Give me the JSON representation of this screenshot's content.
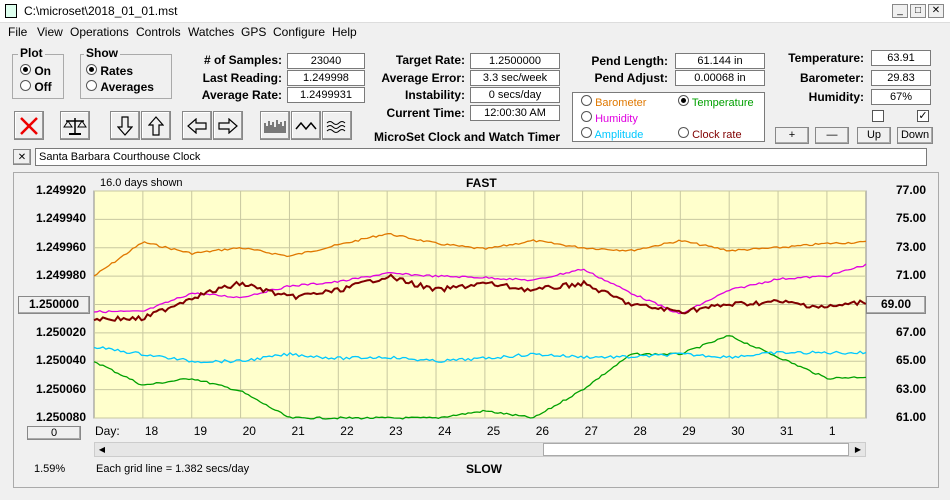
{
  "window": {
    "title": "C:\\microset\\2018_01_01.mst"
  },
  "menu": [
    "File",
    "View",
    "Operations",
    "Controls",
    "Watches",
    "GPS",
    "Configure",
    "Help"
  ],
  "plot_group": {
    "label": "Plot",
    "on": "On",
    "off": "Off",
    "selected": "On"
  },
  "show_group": {
    "label": "Show",
    "rates": "Rates",
    "averages": "Averages",
    "selected": "Rates"
  },
  "stats": {
    "samples_label": "# of Samples:",
    "samples": "23040",
    "last_label": "Last Reading:",
    "last": "1.249998",
    "avg_label": "Average Rate:",
    "avg": "1.2499931",
    "target_label": "Target Rate:",
    "target": "1.2500000",
    "avgerr_label": "Average Error:",
    "avgerr": "3.3 sec/week",
    "instab_label": "Instability:",
    "instab": "0 secs/day",
    "time_label": "Current Time:",
    "time": "12:00:30 AM",
    "pendlen_label": "Pend Length:",
    "pendlen": "61.144 in",
    "pendadj_label": "Pend Adjust:",
    "pendadj": "0.00068 in",
    "temp_label": "Temperature:",
    "temp": "63.91",
    "baro_label": "Barometer:",
    "baro": "29.83",
    "hum_label": "Humidity:",
    "hum": "67%"
  },
  "app_caption": "MicroSet Clock and Watch Timer",
  "sensor_select": {
    "barometer": "Barometer",
    "temperature": "Temperature",
    "humidity": "Humidity",
    "amplitude": "Amplitude",
    "clockrate": "Clock rate",
    "selected": "Temperature",
    "colors": {
      "barometer": "#e07800",
      "temperature": "#00a000",
      "humidity": "#e000e0",
      "amplitude": "#00c8ff",
      "clockrate": "#800000"
    }
  },
  "right_buttons": {
    "plus": "+",
    "minus": "—",
    "up": "Up",
    "down": "Down"
  },
  "clock_name": "Santa Barbara Courthouse Clock",
  "close_x": "✕",
  "chart": {
    "days_shown": "16.0 days shown",
    "fast": "FAST",
    "slow": "SLOW",
    "left_ticks": [
      "1.249920",
      "1.249940",
      "1.249960",
      "1.249980",
      "1.250000",
      "1.250020",
      "1.250040",
      "1.250060",
      "1.250080"
    ],
    "right_ticks": [
      "77.00",
      "75.00",
      "73.00",
      "71.00",
      "69.00",
      "67.00",
      "65.00",
      "63.00",
      "61.00"
    ],
    "day_label": "Day:",
    "days": [
      "18",
      "19",
      "20",
      "21",
      "22",
      "23",
      "24",
      "25",
      "26",
      "27",
      "28",
      "29",
      "30",
      "31",
      "1"
    ],
    "bottom_left_button": "0",
    "percent": "1.59%",
    "grid_note": "Each grid line = 1.382 secs/day",
    "bg": "#ffffcc"
  },
  "chart_data": {
    "type": "line",
    "title": "",
    "xlabel": "Day",
    "x": [
      17.0,
      18.0,
      19.0,
      20.0,
      21.0,
      22.0,
      23.0,
      24.0,
      25.0,
      26.0,
      27.0,
      28.0,
      29.0,
      30.0,
      31.0,
      32.0,
      32.8
    ],
    "y_left_range": [
      1.24992,
      1.25008
    ],
    "y_right_range": [
      61,
      77
    ],
    "series": [
      {
        "name": "Barometer",
        "axis": "right",
        "color": "#e07800",
        "values": [
          71.0,
          73.4,
          72.6,
          73.0,
          72.4,
          73.2,
          74.0,
          73.3,
          72.9,
          73.5,
          73.0,
          72.8,
          73.5,
          72.8,
          73.0,
          73.3,
          73.4
        ]
      },
      {
        "name": "Temperature",
        "axis": "right",
        "color": "#00a000",
        "values": [
          65.0,
          63.3,
          63.8,
          62.9,
          61.0,
          61.0,
          61.0,
          61.0,
          61.5,
          61.0,
          63.0,
          65.5,
          65.5,
          66.8,
          65.3,
          63.8,
          63.9
        ]
      },
      {
        "name": "Humidity",
        "axis": "right",
        "color": "#e000e0",
        "values": [
          68.5,
          68.5,
          69.8,
          69.5,
          70.3,
          70.6,
          71.2,
          71.0,
          70.9,
          70.7,
          71.5,
          69.8,
          68.3,
          70.0,
          70.8,
          71.0,
          71.8
        ]
      },
      {
        "name": "Amplitude",
        "axis": "right",
        "color": "#00c8ff",
        "values": [
          66.0,
          65.5,
          65.0,
          65.0,
          65.5,
          65.2,
          65.3,
          65.0,
          65.2,
          65.5,
          65.3,
          65.3,
          65.5,
          65.3,
          65.6,
          65.6,
          65.6
        ]
      },
      {
        "name": "Clock rate",
        "axis": "left",
        "color": "#800000",
        "values": [
          1.25001,
          1.25001,
          1.249995,
          1.249985,
          1.249995,
          1.24999,
          1.24998,
          1.24999,
          1.249985,
          1.24999,
          1.249985,
          1.25,
          1.250005,
          1.25,
          1.249998,
          1.250002,
          1.249998
        ]
      }
    ]
  }
}
